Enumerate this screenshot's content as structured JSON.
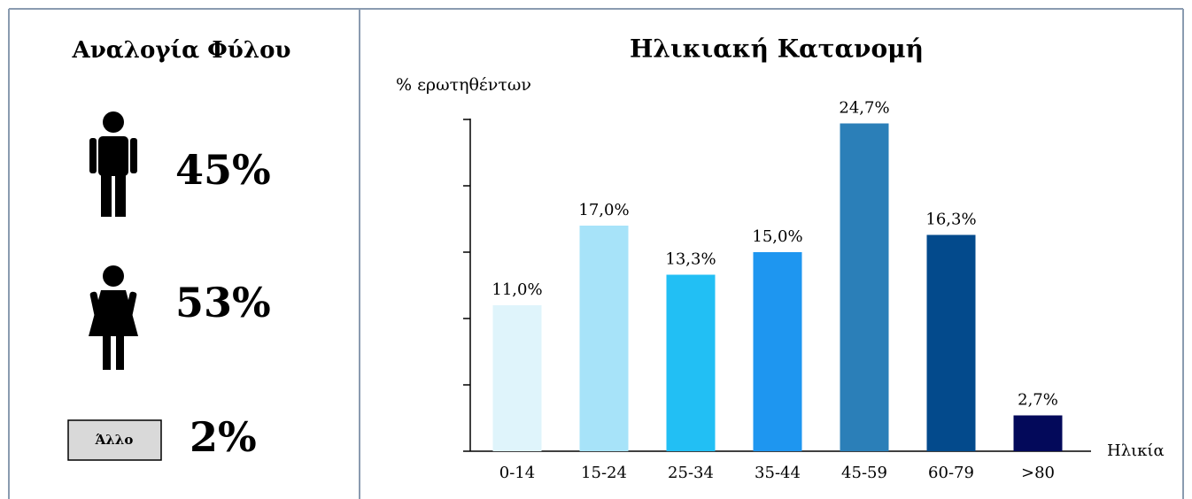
{
  "gender": {
    "title": "Αναλογία Φύλου",
    "male": "45%",
    "female": "53%",
    "other_label": "Άλλο",
    "other": "2%"
  },
  "chart_data": {
    "type": "bar",
    "title": "Ηλικιακή Κατανομή",
    "y_label": "% ερωτηθέντων",
    "x_label": "Ηλικία",
    "categories": [
      "0-14",
      "15-24",
      "25-34",
      "35-44",
      "45-59",
      "60-79",
      ">80"
    ],
    "values": [
      11.0,
      17.0,
      13.3,
      15.0,
      24.7,
      16.3,
      2.7
    ],
    "value_labels": [
      "11,0%",
      "17,0%",
      "13,3%",
      "15,0%",
      "24,7%",
      "16,3%",
      "2,7%"
    ],
    "colors": [
      "#dff4fb",
      "#a7e3f9",
      "#22bff4",
      "#1e96f0",
      "#2b7fb8",
      "#034a8c",
      "#03095a"
    ],
    "ylim": [
      0,
      25
    ],
    "yticks": [
      0,
      5,
      10,
      15,
      20,
      25
    ],
    "grid": false
  }
}
